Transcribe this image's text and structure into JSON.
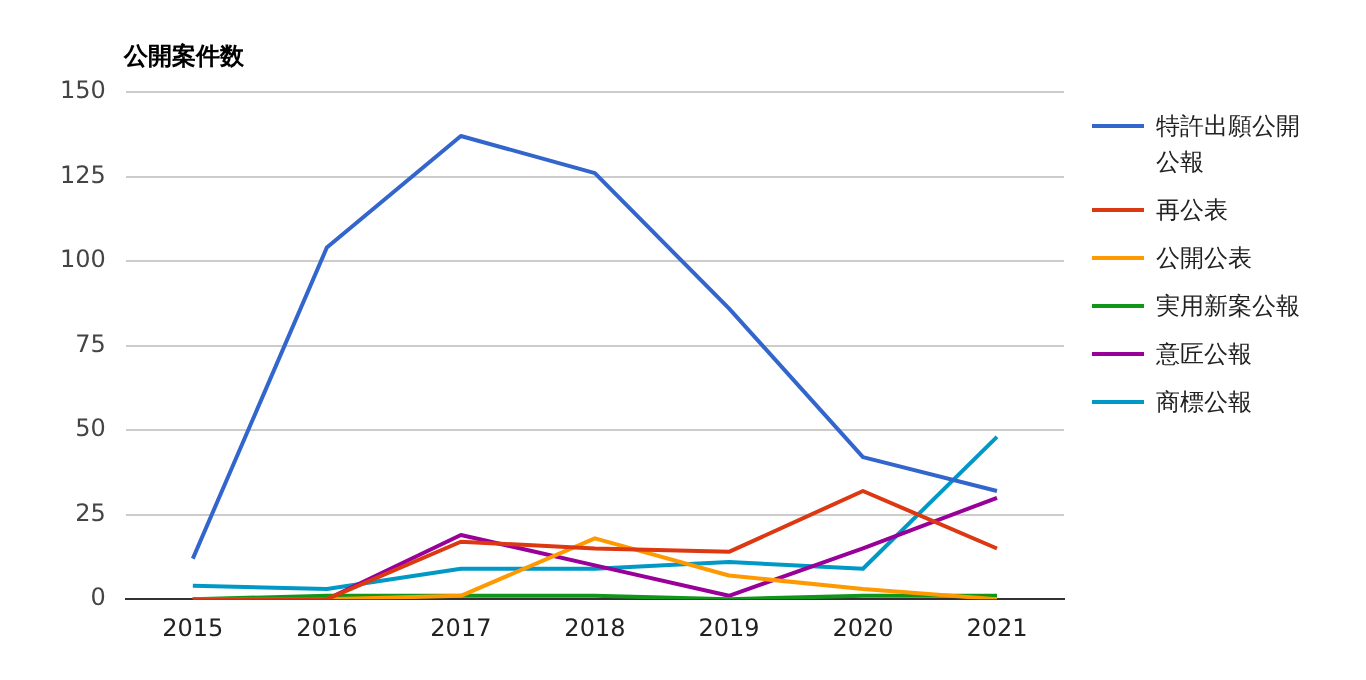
{
  "chart_data": {
    "type": "line",
    "title": "公開案件数",
    "categories": [
      "2015",
      "2016",
      "2017",
      "2018",
      "2019",
      "2020",
      "2021"
    ],
    "series": [
      {
        "name": "特許出願公開公報",
        "color": "#3366cc",
        "values": [
          12,
          104,
          137,
          126,
          86,
          42,
          32
        ]
      },
      {
        "name": "再公表",
        "color": "#dc3912",
        "values": [
          0,
          0,
          17,
          15,
          14,
          32,
          15
        ]
      },
      {
        "name": "公開公表",
        "color": "#ff9900",
        "values": [
          0,
          0,
          1,
          18,
          7,
          3,
          0
        ]
      },
      {
        "name": "実用新案公報",
        "color": "#109618",
        "values": [
          0,
          1,
          1,
          1,
          0,
          1,
          1
        ]
      },
      {
        "name": "意匠公報",
        "color": "#990099",
        "values": [
          0,
          0,
          19,
          10,
          1,
          15,
          30
        ]
      },
      {
        "name": "商標公報",
        "color": "#0099c6",
        "values": [
          4,
          3,
          9,
          9,
          11,
          9,
          48
        ]
      }
    ],
    "ylim": [
      0,
      150
    ],
    "yticks": [
      0,
      25,
      50,
      75,
      100,
      125,
      150
    ],
    "grid": "y",
    "legend": "right",
    "marker": "none",
    "line_style": "solid"
  }
}
